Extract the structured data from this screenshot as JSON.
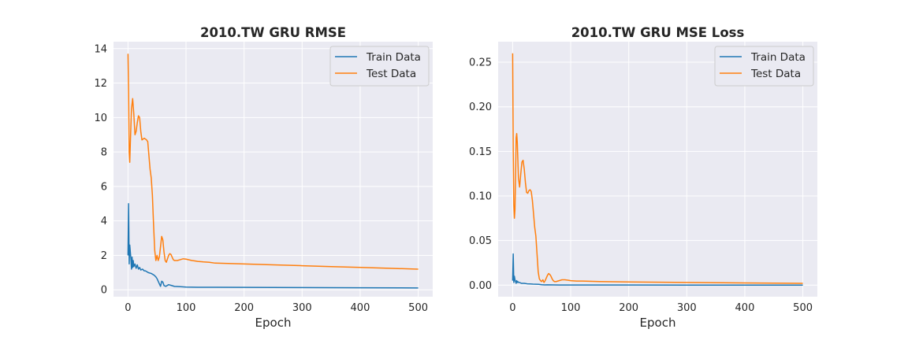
{
  "colors": {
    "train": "#1f77b4",
    "test": "#ff7f0e",
    "plot_bg": "#eaeaf2",
    "grid": "#ffffff"
  },
  "chart_data": [
    {
      "type": "line",
      "title": "2010.TW  GRU RMSE",
      "xlabel": "Epoch",
      "ylabel": "",
      "xlim": [
        -25,
        525
      ],
      "ylim": [
        -0.4,
        14.4
      ],
      "xticks": [
        0,
        100,
        200,
        300,
        400,
        500
      ],
      "yticks": [
        0,
        2,
        4,
        6,
        8,
        10,
        12,
        14
      ],
      "tick_labels_y": [
        "0",
        "2",
        "4",
        "6",
        "8",
        "10",
        "12",
        "14"
      ],
      "grid": true,
      "legend": "top-right",
      "series": [
        {
          "name": "Train Data",
          "color_key": "train",
          "x": [
            0,
            1,
            2,
            3,
            4,
            5,
            6,
            7,
            8,
            9,
            10,
            12,
            14,
            16,
            18,
            20,
            22,
            25,
            28,
            30,
            35,
            40,
            45,
            48,
            50,
            52,
            54,
            56,
            58,
            60,
            62,
            65,
            70,
            75,
            80,
            90,
            100,
            120,
            150,
            200,
            300,
            400,
            500
          ],
          "y": [
            2.0,
            5.0,
            1.5,
            2.6,
            2.2,
            1.8,
            1.2,
            1.9,
            1.3,
            1.7,
            1.35,
            1.5,
            1.25,
            1.45,
            1.2,
            1.3,
            1.15,
            1.2,
            1.1,
            1.1,
            1.0,
            0.95,
            0.85,
            0.75,
            0.65,
            0.5,
            0.35,
            0.2,
            0.5,
            0.45,
            0.25,
            0.2,
            0.3,
            0.25,
            0.2,
            0.18,
            0.16,
            0.15,
            0.15,
            0.14,
            0.13,
            0.12,
            0.11
          ]
        },
        {
          "name": "Test Data",
          "color_key": "test",
          "x": [
            0,
            1,
            2,
            3,
            4,
            6,
            8,
            10,
            12,
            14,
            16,
            18,
            20,
            22,
            24,
            26,
            28,
            30,
            32,
            34,
            36,
            38,
            40,
            42,
            44,
            46,
            48,
            50,
            52,
            54,
            56,
            58,
            60,
            62,
            64,
            66,
            68,
            70,
            72,
            74,
            76,
            78,
            80,
            85,
            90,
            95,
            100,
            105,
            110,
            115,
            120,
            130,
            140,
            150,
            200,
            250,
            300,
            350,
            400,
            450,
            500
          ],
          "y": [
            13.7,
            11.5,
            8.0,
            7.4,
            8.5,
            10.5,
            11.1,
            10.2,
            9.0,
            9.2,
            9.7,
            10.1,
            10.0,
            9.2,
            8.7,
            8.75,
            8.8,
            8.75,
            8.7,
            8.6,
            7.8,
            7.0,
            6.5,
            5.5,
            3.8,
            2.3,
            1.7,
            2.0,
            1.7,
            1.9,
            2.5,
            3.1,
            2.9,
            2.2,
            1.7,
            1.6,
            1.8,
            2.0,
            2.1,
            2.05,
            1.9,
            1.75,
            1.7,
            1.7,
            1.75,
            1.8,
            1.78,
            1.74,
            1.7,
            1.68,
            1.65,
            1.62,
            1.6,
            1.55,
            1.5,
            1.45,
            1.4,
            1.35,
            1.3,
            1.25,
            1.2
          ]
        }
      ]
    },
    {
      "type": "line",
      "title": "2010.TW  GRU MSE Loss",
      "xlabel": "Epoch",
      "ylabel": "",
      "xlim": [
        -25,
        525
      ],
      "ylim": [
        -0.013,
        0.273
      ],
      "xticks": [
        0,
        100,
        200,
        300,
        400,
        500
      ],
      "yticks": [
        0.0,
        0.05,
        0.1,
        0.15,
        0.2,
        0.25
      ],
      "tick_labels_y": [
        "0.00",
        "0.05",
        "0.10",
        "0.15",
        "0.20",
        "0.25"
      ],
      "grid": true,
      "legend": "top-right",
      "series": [
        {
          "name": "Train Data",
          "color_key": "train",
          "x": [
            0,
            1,
            2,
            3,
            4,
            5,
            6,
            7,
            8,
            9,
            10,
            12,
            15,
            18,
            20,
            25,
            30,
            35,
            40,
            45,
            50,
            55,
            60,
            70,
            80,
            100,
            150,
            200,
            300,
            400,
            500
          ],
          "y": [
            0.005,
            0.035,
            0.003,
            0.01,
            0.006,
            0.004,
            0.002,
            0.005,
            0.003,
            0.004,
            0.003,
            0.003,
            0.002,
            0.002,
            0.002,
            0.0015,
            0.0013,
            0.0011,
            0.001,
            0.0009,
            0.0005,
            0.0002,
            0.0003,
            0.0002,
            0.0001,
            0.0001,
            0.0001,
            0.0001,
            0.0,
            0.0,
            0.0
          ]
        },
        {
          "name": "Test Data",
          "color_key": "test",
          "x": [
            0,
            1,
            2,
            3,
            4,
            5,
            6,
            7,
            8,
            9,
            10,
            12,
            14,
            16,
            18,
            20,
            22,
            24,
            26,
            28,
            30,
            32,
            34,
            36,
            38,
            40,
            42,
            44,
            46,
            48,
            50,
            52,
            54,
            56,
            58,
            60,
            62,
            64,
            66,
            68,
            70,
            72,
            75,
            80,
            85,
            90,
            95,
            100,
            110,
            120,
            150,
            200,
            300,
            400,
            500
          ],
          "y": [
            0.26,
            0.15,
            0.09,
            0.075,
            0.085,
            0.12,
            0.165,
            0.17,
            0.16,
            0.14,
            0.12,
            0.11,
            0.125,
            0.138,
            0.14,
            0.13,
            0.115,
            0.104,
            0.103,
            0.106,
            0.107,
            0.105,
            0.095,
            0.08,
            0.065,
            0.055,
            0.035,
            0.015,
            0.007,
            0.005,
            0.004,
            0.006,
            0.003,
            0.005,
            0.008,
            0.011,
            0.013,
            0.012,
            0.01,
            0.007,
            0.005,
            0.004,
            0.004,
            0.005,
            0.006,
            0.006,
            0.0055,
            0.005,
            0.0045,
            0.0045,
            0.004,
            0.0035,
            0.003,
            0.0025,
            0.002
          ]
        }
      ]
    }
  ]
}
